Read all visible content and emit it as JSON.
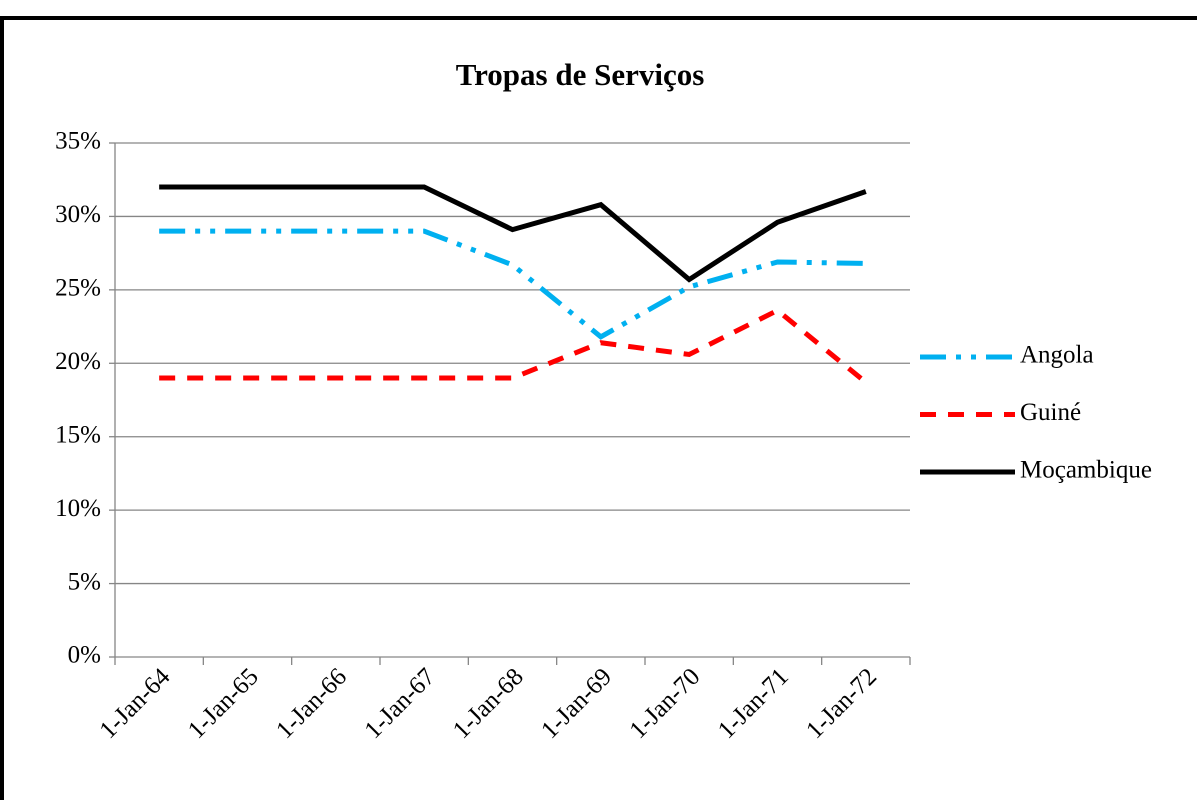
{
  "chart_data": {
    "type": "line",
    "title": "Tropas de Serviços",
    "categories": [
      "1-Jan-64",
      "1-Jan-65",
      "1-Jan-66",
      "1-Jan-67",
      "1-Jan-68",
      "1-Jan-69",
      "1-Jan-70",
      "1-Jan-71",
      "1-Jan-72"
    ],
    "series": [
      {
        "name": "Angola",
        "color": "#00b0f0",
        "dash": "dash-dot-dot",
        "values": [
          29,
          29,
          29,
          29,
          26.7,
          21.8,
          25.2,
          26.9,
          26.8
        ]
      },
      {
        "name": "Guiné",
        "color": "#ff0000",
        "dash": "dash",
        "values": [
          19,
          19,
          19,
          19,
          19,
          21.4,
          20.6,
          23.6,
          18.7
        ]
      },
      {
        "name": "Moçambique",
        "color": "#000000",
        "dash": "solid",
        "values": [
          32,
          32,
          32,
          32,
          29.1,
          30.8,
          25.7,
          29.6,
          31.7
        ]
      }
    ],
    "ylim": [
      0,
      35
    ],
    "yticks": [
      {
        "value": 0,
        "label": "0%"
      },
      {
        "value": 5,
        "label": "5%"
      },
      {
        "value": 10,
        "label": "10%"
      },
      {
        "value": 15,
        "label": "15%"
      },
      {
        "value": 20,
        "label": "20%"
      },
      {
        "value": 25,
        "label": "25%"
      },
      {
        "value": 30,
        "label": "30%"
      },
      {
        "value": 35,
        "label": "35%"
      }
    ],
    "grid": true,
    "legend": "right"
  }
}
